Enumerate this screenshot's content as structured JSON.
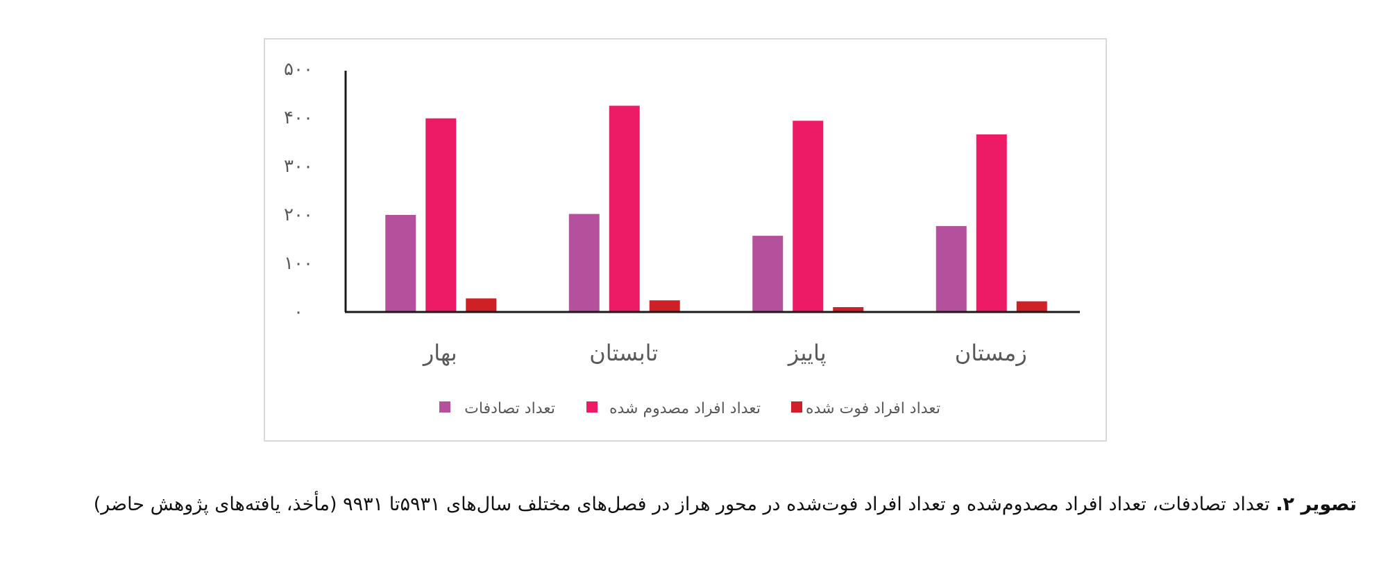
{
  "chart_data": {
    "type": "bar",
    "categories": [
      "بهار",
      "تابستان",
      "پاییز",
      "زمستان"
    ],
    "series": [
      {
        "name": "تعداد تصادفات",
        "color": "#b5509d",
        "values": [
          200,
          202,
          157,
          177
        ]
      },
      {
        "name": "تعداد افراد مصدوم شده",
        "color": "#ed1a66",
        "values": [
          399,
          425,
          394,
          366
        ]
      },
      {
        "name": "تعداد افراد فوت شده",
        "color": "#cf2027",
        "values": [
          28,
          24,
          10,
          22
        ]
      }
    ],
    "ylim": [
      0,
      500
    ],
    "yticks": [
      0,
      100,
      200,
      300,
      400,
      500
    ],
    "ytick_labels": [
      "۰",
      "۱۰۰",
      "۲۰۰",
      "۳۰۰",
      "۴۰۰",
      "۵۰۰"
    ],
    "grid": false,
    "legend_position": "bottom"
  },
  "caption": {
    "title": "تصویر ۲.",
    "text": " تعداد تصادفات، تعداد افراد مصدوم‌شده و تعداد افراد فوت‌شده در محور هراز در فصل‌های مختلف سال‌های ۵۹۳۱تا ۹۹۳۱ (مأخذ، یافته‌های پژوهش حاضر)"
  }
}
